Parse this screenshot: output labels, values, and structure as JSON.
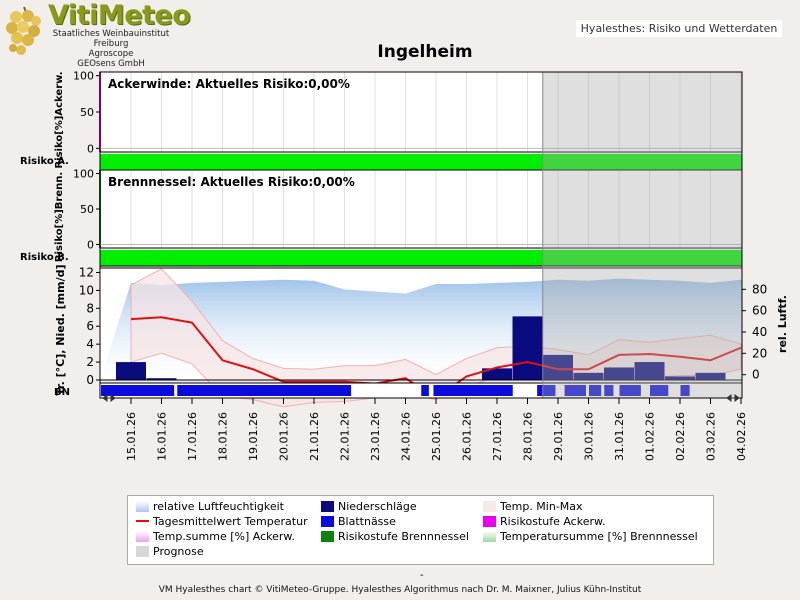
{
  "header": {
    "logo_text": "VitiMeteo",
    "logo_sub": [
      "Staatliches Weinbauinstitut Freiburg",
      "Agroscope",
      "GEOsens GmbH"
    ],
    "app_label": "Hyalesthes: Risiko und Wetterdaten"
  },
  "footer": {
    "dash": "-",
    "credit": "VM Hyalesthes chart © VitiMeteo-Gruppe. Hyalesthes Algorithmus nach Dr. M. Maixner, Julius Kühn-Institut"
  },
  "legend": [
    {
      "label": "relative Luftfeuchtigkeit",
      "color": "#a9c9ec"
    },
    {
      "label": "Niederschläge",
      "color": "#0b0b80"
    },
    {
      "label": "Temp. Min-Max",
      "color": "#f5eaea"
    },
    {
      "label": "Tagesmittelwert Temperatur",
      "color": "#e01010"
    },
    {
      "label": "Blattnässe",
      "color": "#0b0bdd"
    },
    {
      "label": "Risikostufe Ackerw.",
      "color": "#ee00ee"
    },
    {
      "label": "Temp.summe [%] Ackerw.",
      "color": "#f0a0f0"
    },
    {
      "label": "Risikostufe Brennnessel",
      "color": "#108010"
    },
    {
      "label": "Temperatursumme [%] Brennnessel",
      "color": "#a0d8a0"
    },
    {
      "label": "Prognose",
      "color": "#d8d8d8"
    }
  ],
  "chart_data": {
    "type": "multi-panel",
    "title": "Ingelheim",
    "dates": [
      "15.01.26",
      "16.01.26",
      "17.01.26",
      "18.01.26",
      "19.01.26",
      "20.01.26",
      "21.01.26",
      "22.01.26",
      "23.01.26",
      "24.01.26",
      "25.01.26",
      "26.01.26",
      "27.01.26",
      "28.01.26",
      "29.01.26",
      "30.01.26",
      "31.01.26",
      "01.02.26",
      "02.02.26",
      "03.02.26",
      "04.02.26"
    ],
    "forecast_start_index": 13.5,
    "panels": [
      {
        "name": "ackerwinde",
        "annotation": "Ackerwinde: Aktuelles Risiko:0,00%",
        "ylabel": "Risiko[%]Ackerw.",
        "yticks": [
          0,
          50,
          100
        ],
        "ylim": [
          -5,
          105
        ],
        "band_label": "Risiko A.",
        "risk_level_color": "#00ee00"
      },
      {
        "name": "brennnessel",
        "annotation": "Brennnessel: Aktuelles Risiko:0,00%",
        "ylabel": "Risiko[%]Brenn.",
        "yticks": [
          0,
          50,
          100
        ],
        "ylim": [
          -5,
          105
        ],
        "band_label": "Risiko B.",
        "risk_level_color": "#00ee00"
      },
      {
        "name": "weather",
        "ylabel_left": "Tr. [°C], Nied. [mm/d]",
        "ylabel_right": "rel. Luftf.",
        "yticks_left": [
          0,
          2,
          4,
          6,
          8,
          10,
          12
        ],
        "ylim_left": [
          0,
          12.5
        ],
        "yticks_right": [
          0,
          20,
          40,
          60,
          80
        ],
        "ylim_right": [
          -5,
          100
        ],
        "band_label": "BN",
        "humidity_pct": [
          86,
          84,
          86,
          87,
          88,
          89,
          88,
          80,
          78,
          76,
          85,
          85,
          86,
          87,
          89,
          88,
          90,
          89,
          88,
          86,
          89
        ],
        "precip_mm": [
          2.0,
          0.2,
          0,
          0,
          0,
          0,
          0,
          0,
          0,
          0,
          0,
          0,
          1.3,
          7.1,
          2.8,
          0.8,
          1.4,
          2.0,
          0.4,
          0.8,
          0
        ],
        "temp_mean": [
          6.8,
          7.0,
          6.4,
          2.2,
          1.2,
          -0.2,
          -0.2,
          -0.2,
          -0.4,
          0.2,
          -2.0,
          0.4,
          1.4,
          2.0,
          1.2,
          1.2,
          2.8,
          2.9,
          2.6,
          2.2,
          3.6
        ],
        "temp_min": [
          2.0,
          3.0,
          1.8,
          -1.8,
          -2.2,
          -3.0,
          -2.5,
          -2.4,
          -2.0,
          -1.5,
          -2.2,
          -0.7,
          0.3,
          0.5,
          0.6,
          0.3,
          0.3,
          0.3,
          0.5,
          0.5,
          1.2
        ],
        "temp_max": [
          10.6,
          12.4,
          8.8,
          4.4,
          2.4,
          1.3,
          1.2,
          1.6,
          1.6,
          2.3,
          0.6,
          2.4,
          3.6,
          3.8,
          3.4,
          2.8,
          4.5,
          4.2,
          4.6,
          5.0,
          4.0
        ],
        "leaf_wetness_segments": [
          [
            0,
            2.4
          ],
          [
            2.5,
            8.2
          ],
          [
            10.5,
            10.75
          ],
          [
            10.9,
            13.5
          ],
          [
            14.3,
            14.9
          ],
          [
            15.2,
            15.9
          ],
          [
            16.0,
            16.4
          ],
          [
            16.5,
            16.8
          ],
          [
            17.0,
            17.7
          ],
          [
            18.0,
            18.6
          ],
          [
            19.0,
            19.3
          ]
        ]
      }
    ]
  }
}
